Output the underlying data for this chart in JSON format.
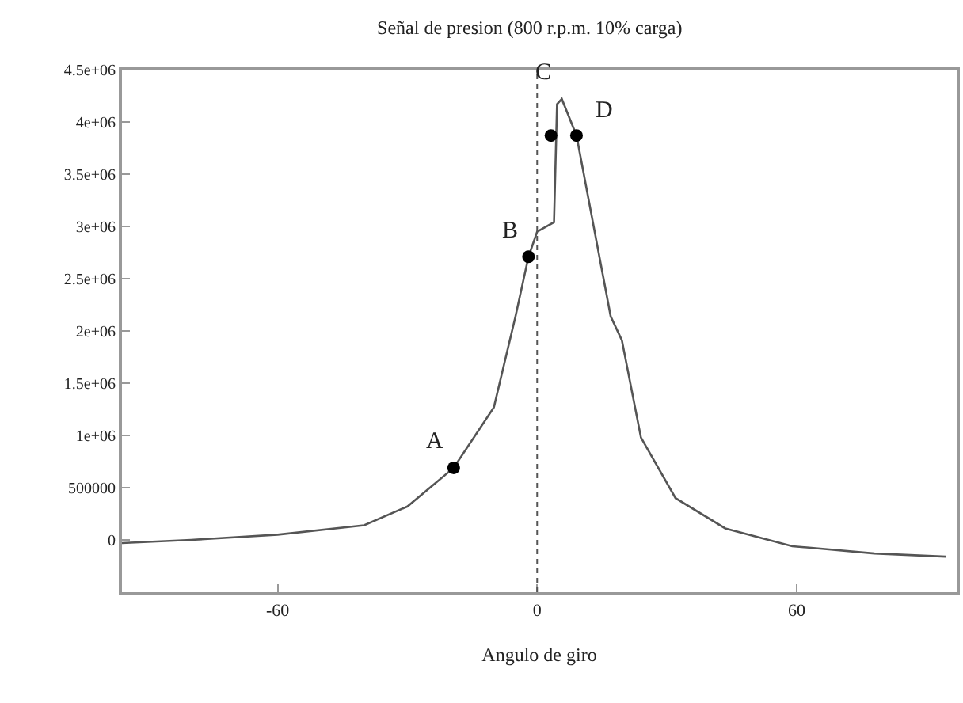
{
  "chart_data": {
    "type": "line",
    "title": "Señal de presion (800 r.p.m. 10% carga)",
    "xlabel": "Angulo de giro",
    "series": [
      {
        "color": "#555555",
        "x": [
          -96,
          -80,
          -60,
          -40,
          -30,
          -19.3,
          -10,
          -5,
          -2,
          0,
          3.9,
          4.6,
          5.7,
          9.1,
          17,
          19.6,
          24,
          32,
          43.5,
          59,
          78,
          94.5
        ],
        "values": [
          -30000,
          0,
          50000,
          140000,
          320000,
          690000,
          1270000,
          2140000,
          2710000,
          2950000,
          3040000,
          4170000,
          4220000,
          3870000,
          2140000,
          1910000,
          980000,
          400000,
          110000,
          -60000,
          -130000,
          -160000
        ]
      },
      {
        "type": "scatter",
        "color": "#000000",
        "marker": "circle",
        "x": [
          -19.3,
          -2,
          3.2,
          9.1
        ],
        "values": [
          690000,
          2710000,
          3870000,
          3870000
        ]
      }
    ],
    "annotations": [
      {
        "text": "A",
        "x": -19.3,
        "y": 690000
      },
      {
        "text": "B",
        "x": -2,
        "y": 2710000
      },
      {
        "text": "C",
        "x": 5.7,
        "y": 4220000
      },
      {
        "text": "D",
        "x": 9.1,
        "y": 3870000
      }
    ],
    "ref_lines": [
      {
        "axis": "x",
        "value": 0,
        "label": null,
        "color": "#555555",
        "line_style": "dotted"
      }
    ],
    "xlim": [
      -96,
      97
    ],
    "xticks": [
      -60,
      0,
      60
    ],
    "ylim": [
      -500000,
      4500000
    ],
    "yticks": [
      0,
      500000,
      {
        "value": 1000000,
        "label": "1e+06"
      },
      {
        "value": 1500000,
        "label": "1.5e+06"
      },
      {
        "value": 2000000,
        "label": "2e+06"
      },
      {
        "value": 2500000,
        "label": "2.5e+06"
      },
      {
        "value": 3000000,
        "label": "3e+06"
      },
      {
        "value": 3500000,
        "label": "3.5e+06"
      },
      {
        "value": 4000000,
        "label": "4e+06"
      },
      {
        "value": 4500000,
        "label": "4.5e+06"
      }
    ]
  }
}
